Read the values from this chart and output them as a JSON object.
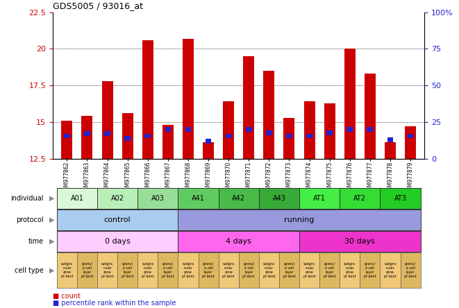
{
  "title": "GDS5005 / 93016_at",
  "samples": [
    "GSM977862",
    "GSM977863",
    "GSM977864",
    "GSM977865",
    "GSM977866",
    "GSM977867",
    "GSM977868",
    "GSM977869",
    "GSM977870",
    "GSM977871",
    "GSM977872",
    "GSM977873",
    "GSM977874",
    "GSM977875",
    "GSM977876",
    "GSM977877",
    "GSM977878",
    "GSM977879"
  ],
  "count_values": [
    15.1,
    15.4,
    17.8,
    15.6,
    20.6,
    14.8,
    20.7,
    13.6,
    16.4,
    19.5,
    18.5,
    15.3,
    16.4,
    16.3,
    20.0,
    18.3,
    13.6,
    14.7
  ],
  "percentile_values": [
    14.05,
    14.2,
    14.2,
    13.9,
    14.05,
    14.5,
    14.5,
    13.7,
    14.05,
    14.5,
    14.25,
    14.05,
    14.05,
    14.25,
    14.5,
    14.5,
    13.8,
    14.05
  ],
  "ylim": [
    12.5,
    22.5
  ],
  "yticks": [
    12.5,
    15.0,
    17.5,
    20.0,
    22.5
  ],
  "right_ytick_percents": [
    0,
    25,
    50,
    75,
    100
  ],
  "bar_color_red": "#cc0000",
  "bar_color_blue": "#2222cc",
  "individual_spans": [
    {
      "label": "A01",
      "start": 0,
      "end": 2,
      "color": "#d8f8d8"
    },
    {
      "label": "A02",
      "start": 2,
      "end": 4,
      "color": "#b8eeb8"
    },
    {
      "label": "A03",
      "start": 4,
      "end": 6,
      "color": "#98de98"
    },
    {
      "label": "A41",
      "start": 6,
      "end": 8,
      "color": "#60cc60"
    },
    {
      "label": "A42",
      "start": 8,
      "end": 10,
      "color": "#48bb48"
    },
    {
      "label": "A43",
      "start": 10,
      "end": 12,
      "color": "#38aa38"
    },
    {
      "label": "AT1",
      "start": 12,
      "end": 14,
      "color": "#44ee44"
    },
    {
      "label": "AT2",
      "start": 14,
      "end": 16,
      "color": "#33dd33"
    },
    {
      "label": "AT3",
      "start": 16,
      "end": 18,
      "color": "#22cc22"
    }
  ],
  "protocol_spans": [
    {
      "label": "control",
      "start": 0,
      "end": 6,
      "color": "#aaccee"
    },
    {
      "label": "running",
      "start": 6,
      "end": 18,
      "color": "#9999dd"
    }
  ],
  "time_spans": [
    {
      "label": "0 days",
      "start": 0,
      "end": 6,
      "color": "#ffccff"
    },
    {
      "label": "4 days",
      "start": 6,
      "end": 12,
      "color": "#ff66ee"
    },
    {
      "label": "30 days",
      "start": 12,
      "end": 18,
      "color": "#ee33cc"
    }
  ],
  "cell_type_even_label": "subgra\nnular\nzone\npf dent",
  "cell_type_odd_label": "granul\ne cell\nlayer\npf dent",
  "cell_type_even_color": "#f0c878",
  "cell_type_odd_color": "#deb860",
  "row_labels": [
    "individual",
    "protocol",
    "time",
    "cell type"
  ],
  "legend_count_label": "count",
  "legend_percentile_label": "percentile rank within the sample"
}
